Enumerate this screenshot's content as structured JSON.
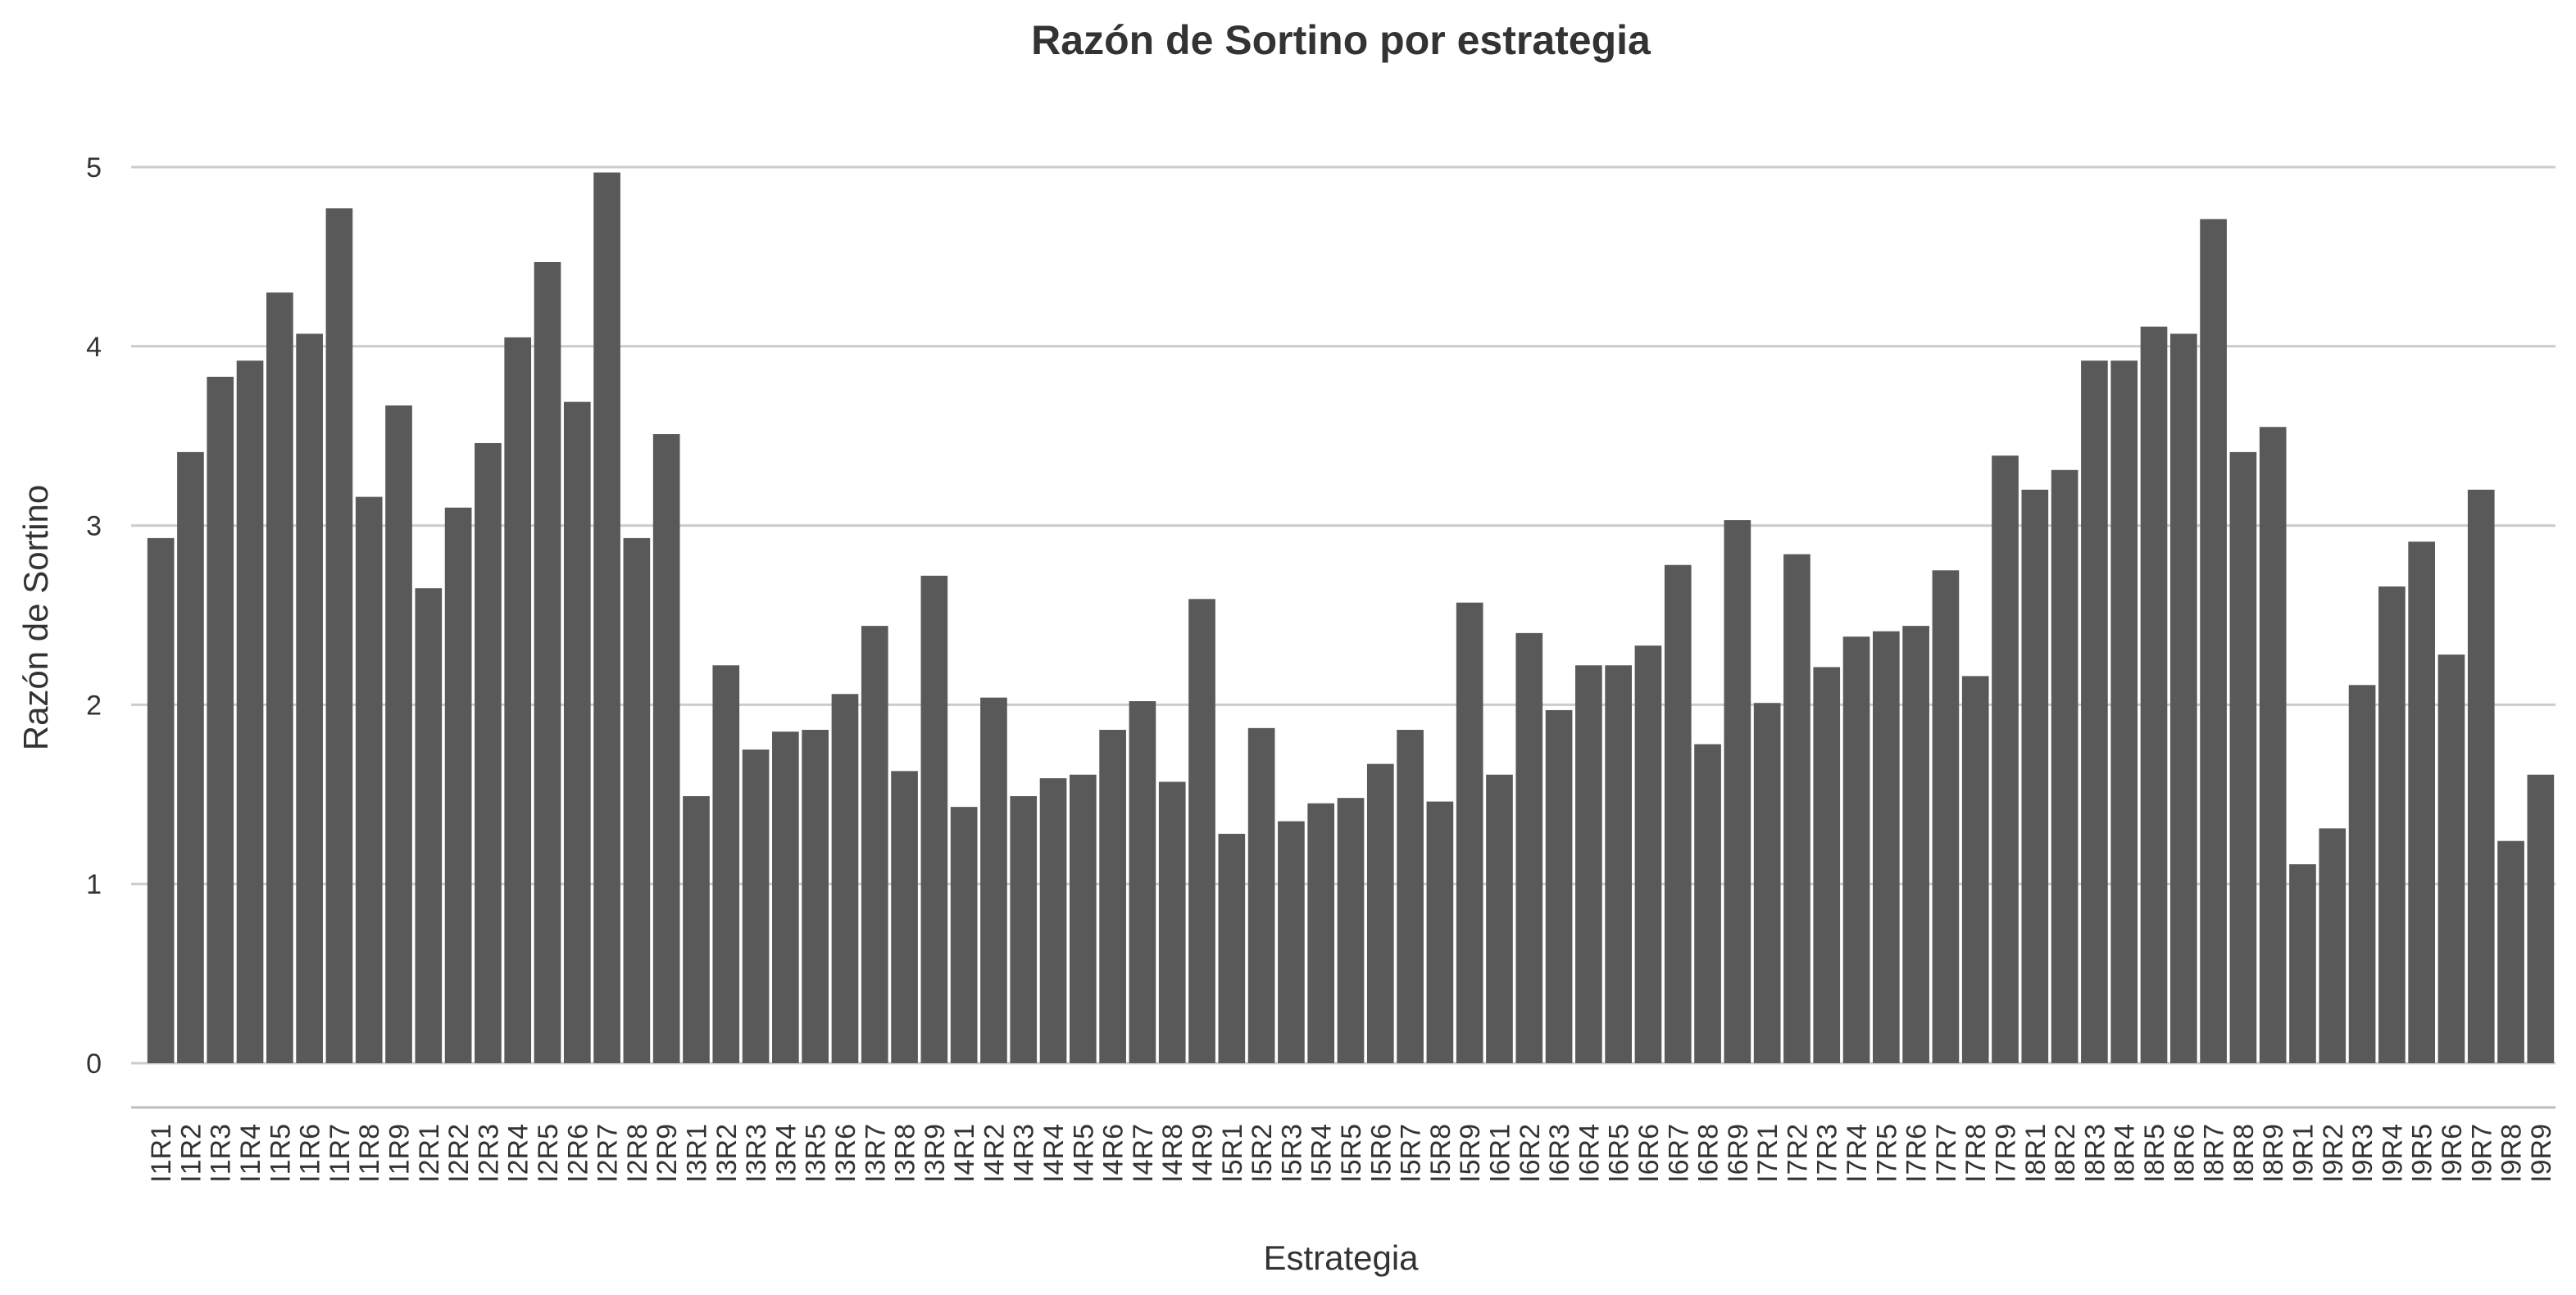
{
  "chart_data": {
    "type": "bar",
    "title": "Razón de Sortino por estrategia",
    "xlabel": "Estrategia",
    "ylabel": "Razón de Sortino",
    "ylim": [
      0,
      5
    ],
    "yticks": [
      0,
      1,
      2,
      3,
      4,
      5
    ],
    "grid": true,
    "bar_color": "#595959",
    "categories": [
      "I1R1",
      "I1R2",
      "I1R3",
      "I1R4",
      "I1R5",
      "I1R6",
      "I1R7",
      "I1R8",
      "I1R9",
      "I2R1",
      "I2R2",
      "I2R3",
      "I2R4",
      "I2R5",
      "I2R6",
      "I2R7",
      "I2R8",
      "I2R9",
      "I3R1",
      "I3R2",
      "I3R3",
      "I3R4",
      "I3R5",
      "I3R6",
      "I3R7",
      "I3R8",
      "I3R9",
      "I4R1",
      "I4R2",
      "I4R3",
      "I4R4",
      "I4R5",
      "I4R6",
      "I4R7",
      "I4R8",
      "I4R9",
      "I5R1",
      "I5R2",
      "I5R3",
      "I5R4",
      "I5R5",
      "I5R6",
      "I5R7",
      "I5R8",
      "I5R9",
      "I6R1",
      "I6R2",
      "I6R3",
      "I6R4",
      "I6R5",
      "I6R6",
      "I6R7",
      "I6R8",
      "I6R9",
      "I7R1",
      "I7R2",
      "I7R3",
      "I7R4",
      "I7R5",
      "I7R6",
      "I7R7",
      "I7R8",
      "I7R9",
      "I8R1",
      "I8R2",
      "I8R3",
      "I8R4",
      "I8R5",
      "I8R6",
      "I8R7",
      "I8R8",
      "I8R9",
      "I9R1",
      "I9R2",
      "I9R3",
      "I9R4",
      "I9R5",
      "I9R6",
      "I9R7",
      "I9R8",
      "I9R9"
    ],
    "values": [
      2.93,
      3.41,
      3.83,
      3.92,
      4.3,
      4.07,
      4.77,
      3.16,
      3.67,
      2.65,
      3.1,
      3.46,
      4.05,
      4.47,
      3.69,
      4.97,
      2.93,
      3.51,
      1.49,
      2.22,
      1.75,
      1.85,
      1.86,
      2.06,
      2.44,
      1.63,
      2.72,
      1.43,
      2.04,
      1.49,
      1.59,
      1.61,
      1.86,
      2.02,
      1.57,
      2.59,
      1.28,
      1.87,
      1.35,
      1.45,
      1.48,
      1.67,
      1.86,
      1.46,
      2.57,
      1.61,
      2.4,
      1.97,
      2.22,
      2.22,
      2.33,
      2.78,
      1.78,
      3.03,
      2.01,
      2.84,
      2.21,
      2.38,
      2.41,
      2.44,
      2.75,
      2.16,
      3.39,
      3.2,
      3.31,
      3.92,
      3.92,
      4.11,
      4.07,
      4.71,
      3.41,
      3.55,
      1.11,
      1.31,
      2.11,
      2.66,
      2.91,
      2.28,
      3.2,
      1.24,
      1.61
    ]
  }
}
